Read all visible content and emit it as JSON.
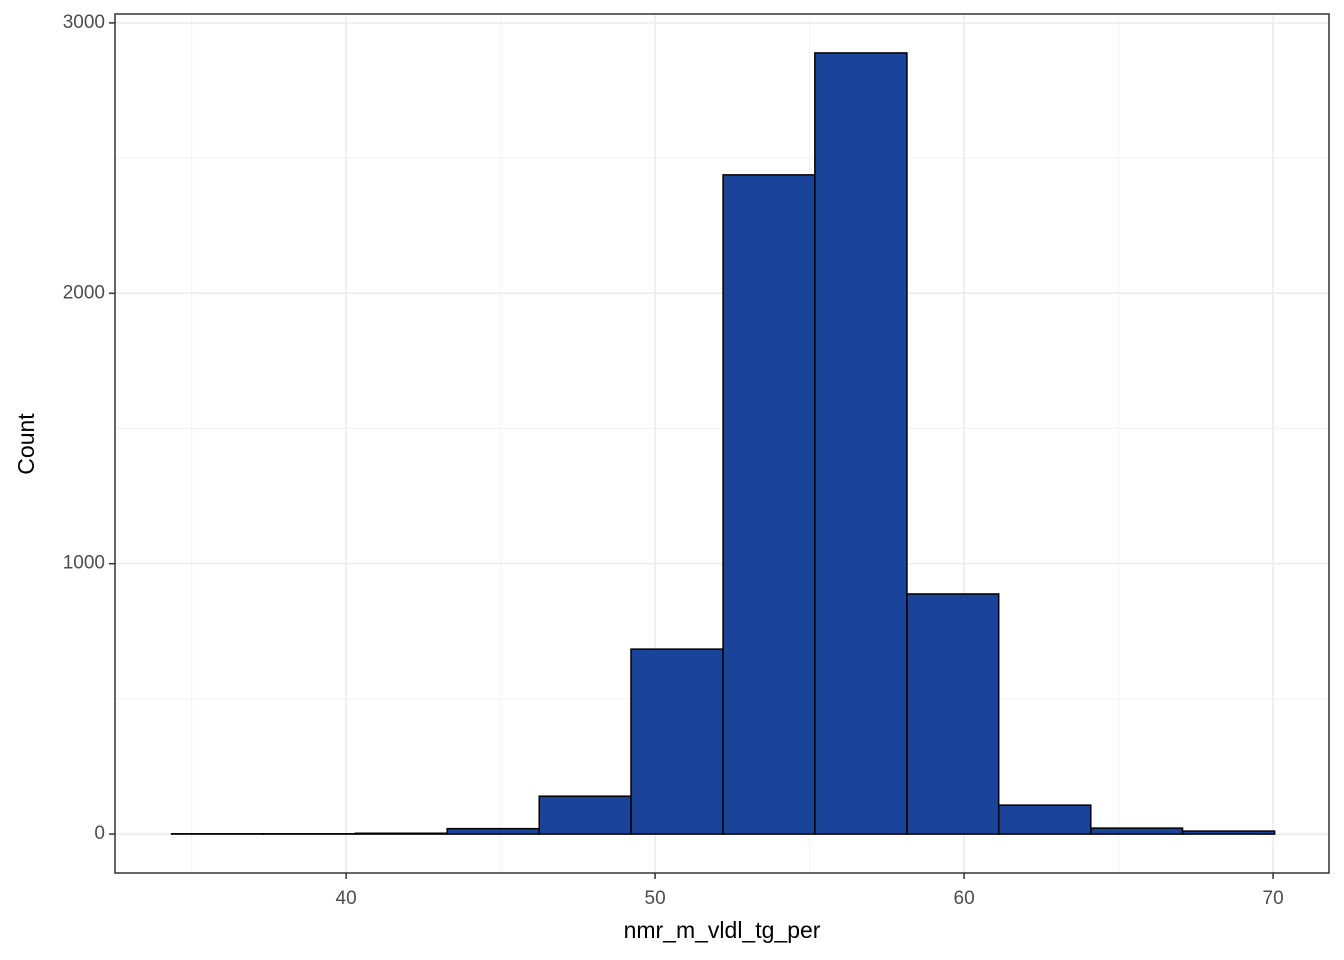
{
  "chart_data": {
    "type": "histogram",
    "x_label": "nmr_m_vldl_tg_per",
    "y_label": "Count",
    "bins": [
      34.35,
      37.32,
      40.3,
      43.27,
      46.25,
      49.22,
      52.2,
      55.17,
      58.15,
      61.12,
      64.1,
      67.07,
      70.05
    ],
    "values": [
      1,
      1,
      3,
      20,
      140,
      684,
      2438,
      2889,
      888,
      107,
      22,
      11
    ],
    "color": "#1a4499",
    "edge_color": "#000000",
    "xlim": [
      32.52,
      71.81
    ],
    "xticks": [
      40,
      50,
      60,
      70
    ],
    "xminor": [
      35,
      45,
      55,
      65
    ],
    "ylim": [
      -144,
      3033
    ],
    "yticks": [
      0,
      1000,
      2000,
      3000
    ],
    "yminor": [
      500,
      1500,
      2500
    ],
    "grid": true
  }
}
